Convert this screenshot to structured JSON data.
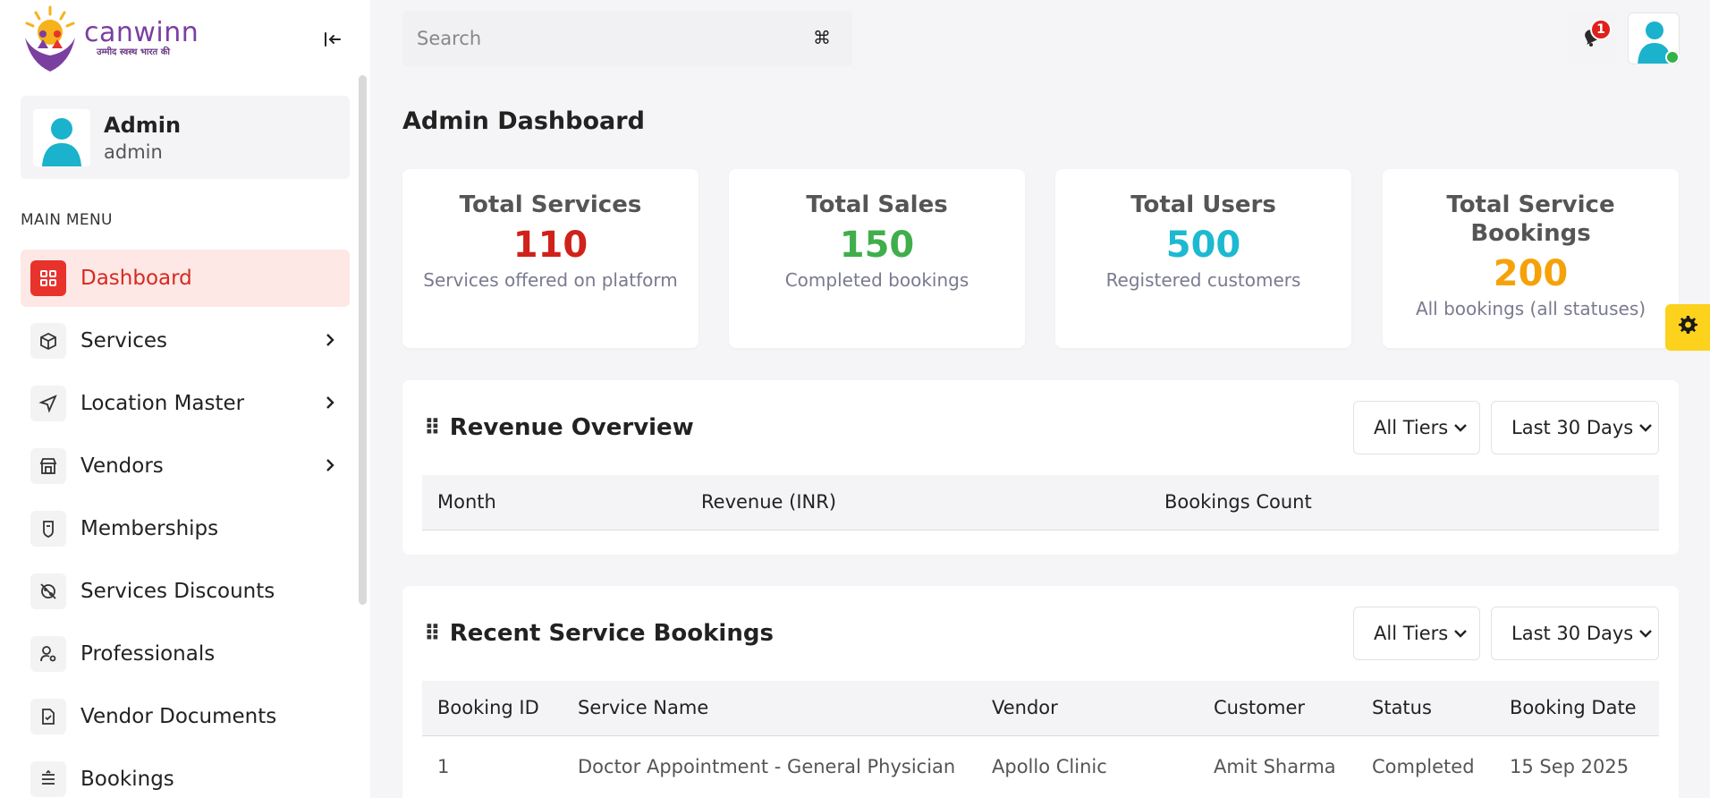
{
  "brand": {
    "name": "canwinn",
    "tagline": "उम्मीद स्वस्थ भारत की"
  },
  "profile": {
    "name": "Admin",
    "role": "admin"
  },
  "menu": {
    "title": "MAIN MENU",
    "items": [
      {
        "label": "Dashboard",
        "icon": "grid-icon",
        "active": true
      },
      {
        "label": "Services",
        "icon": "box-icon",
        "expandable": true
      },
      {
        "label": "Location Master",
        "icon": "navigation-icon",
        "expandable": true
      },
      {
        "label": "Vendors",
        "icon": "store-icon",
        "expandable": true
      },
      {
        "label": "Memberships",
        "icon": "shield-icon"
      },
      {
        "label": "Services Discounts",
        "icon": "discount-off-icon"
      },
      {
        "label": "Professionals",
        "icon": "user-cog-icon"
      },
      {
        "label": "Vendor Documents",
        "icon": "document-check-icon"
      },
      {
        "label": "Bookings",
        "icon": "list-icon"
      }
    ]
  },
  "search": {
    "placeholder": "Search",
    "shortcut_icon": "command-icon"
  },
  "notifications": {
    "count": "1"
  },
  "page": {
    "title": "Admin Dashboard"
  },
  "stats": [
    {
      "title": "Total Services",
      "value": "110",
      "desc": "Services offered on platform",
      "color": "#d0211b"
    },
    {
      "title": "Total Sales",
      "value": "150",
      "desc": "Completed bookings",
      "color": "#3fae4b"
    },
    {
      "title": "Total Users",
      "value": "500",
      "desc": "Registered customers",
      "color": "#1cb9d1"
    },
    {
      "title": "Total Service Bookings",
      "value": "200",
      "desc": "All bookings (all statuses)",
      "color": "#f5a20a"
    }
  ],
  "revenue": {
    "title": "Revenue Overview",
    "filter_tier": "All Tiers",
    "filter_range": "Last 30 Days",
    "columns": [
      "Month",
      "Revenue (INR)",
      "Bookings Count"
    ]
  },
  "bookings": {
    "title": "Recent Service Bookings",
    "filter_tier": "All Tiers",
    "filter_range": "Last 30 Days",
    "columns": [
      "Booking ID",
      "Service Name",
      "Vendor",
      "Customer",
      "Status",
      "Booking Date"
    ],
    "rows": [
      [
        "1",
        "Doctor Appointment - General Physician",
        "Apollo Clinic",
        "Amit Sharma",
        "Completed",
        "15 Sep 2025"
      ]
    ]
  }
}
